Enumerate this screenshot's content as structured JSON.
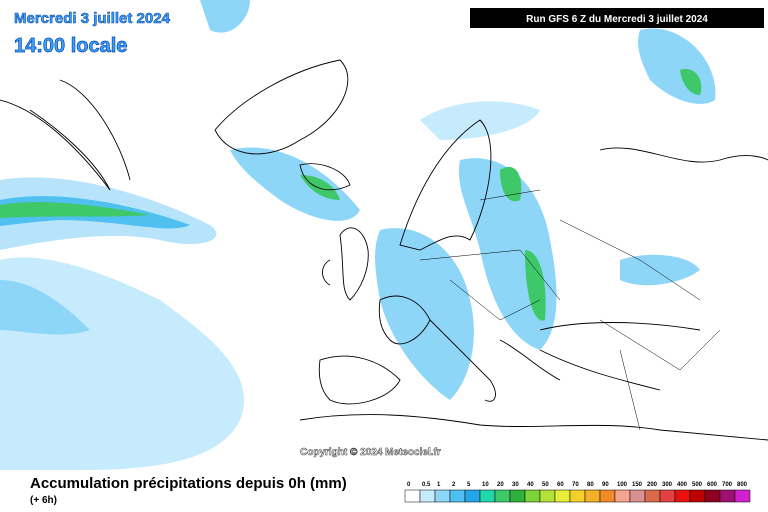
{
  "header": {
    "date": "Mercredi 3 juillet 2024",
    "time": "14:00 locale",
    "run": "Run GFS 6 Z du Mercredi 3 juillet 2024"
  },
  "copyright": "Copyright © 2024 Meteociel.fr",
  "legend": {
    "title": "Accumulation précipitations depuis 0h (mm)",
    "subtitle": "(+ 6h)",
    "scale": [
      {
        "label": "0",
        "color": "#ffffff"
      },
      {
        "label": "0.5",
        "color": "#c6ebfc"
      },
      {
        "label": "1",
        "color": "#8ed6f7"
      },
      {
        "label": "2",
        "color": "#4fc0f0"
      },
      {
        "label": "5",
        "color": "#22a6e8"
      },
      {
        "label": "10",
        "color": "#1fd7a8"
      },
      {
        "label": "20",
        "color": "#3ec86a"
      },
      {
        "label": "30",
        "color": "#2fb03a"
      },
      {
        "label": "40",
        "color": "#7ed23a"
      },
      {
        "label": "50",
        "color": "#b4e03a"
      },
      {
        "label": "60",
        "color": "#e6ee3a"
      },
      {
        "label": "70",
        "color": "#f5d02a"
      },
      {
        "label": "80",
        "color": "#f5b02a"
      },
      {
        "label": "90",
        "color": "#f08a2a"
      },
      {
        "label": "100",
        "color": "#f4a58a"
      },
      {
        "label": "150",
        "color": "#d89090"
      },
      {
        "label": "200",
        "color": "#d86a4a"
      },
      {
        "label": "300",
        "color": "#e04040"
      },
      {
        "label": "400",
        "color": "#e81010"
      },
      {
        "label": "500",
        "color": "#c00000"
      },
      {
        "label": "600",
        "color": "#900020"
      },
      {
        "label": "700",
        "color": "#a01070"
      },
      {
        "label": "800",
        "color": "#d020d0"
      }
    ]
  }
}
